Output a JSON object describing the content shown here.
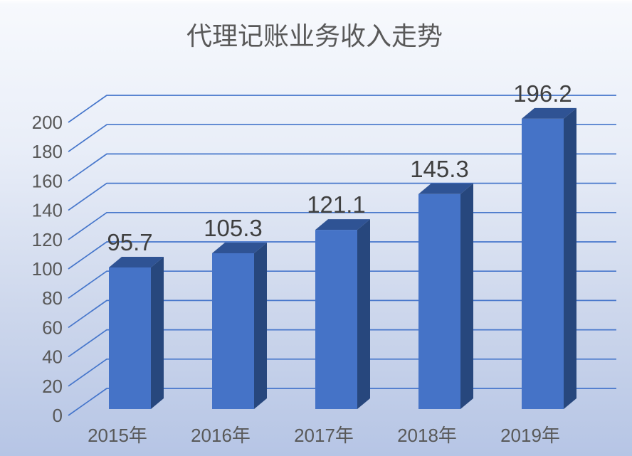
{
  "chart_data": {
    "type": "bar",
    "variant": "3d-column",
    "title": "代理记账业务收入走势",
    "categories": [
      "2015年",
      "2016年",
      "2017年",
      "2018年",
      "2019年"
    ],
    "values": [
      95.7,
      105.3,
      121.1,
      145.3,
      196.2
    ],
    "y_ticks": [
      0,
      20,
      40,
      60,
      80,
      100,
      120,
      140,
      160,
      180,
      200
    ],
    "ylim": [
      0,
      200
    ],
    "xlabel": "",
    "ylabel": "",
    "grid": true,
    "legend": "none",
    "data_labels_shown": true
  },
  "colors": {
    "bar_front": "#4573c7",
    "bar_top": "#2f5394",
    "bar_side": "#27477d",
    "gridline": "#4676cb",
    "title_text": "#595959",
    "axis_text": "#595959",
    "value_label_text": "#3f3f3f",
    "bg_edge": "#ffffff",
    "bg_top": "#f7f9fd",
    "bg_mid": "#e9eef8",
    "bg_lower": "#cdd7ec",
    "bg_bottom": "#b6c5e5"
  }
}
